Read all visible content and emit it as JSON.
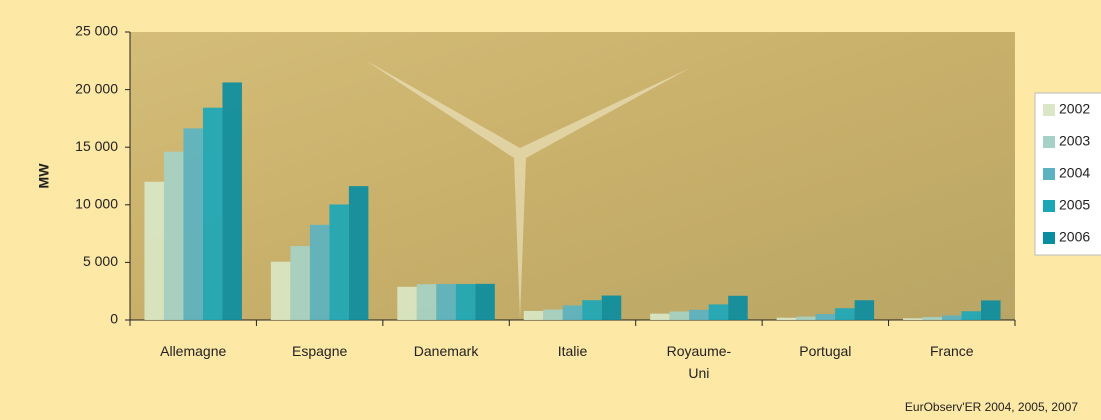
{
  "chart_data": {
    "type": "bar",
    "y_label": "MW",
    "source": "EurObserv'ER 2004, 2005, 2007",
    "categories": [
      "Allemagne",
      "Espagne",
      "Danemark",
      "Italie",
      "Royaume-Uni",
      "Portugal",
      "France"
    ],
    "series": [
      {
        "name": "2002",
        "color": "#d9e7c6",
        "values": [
          12000,
          5060,
          2880,
          785,
          552,
          195,
          148
        ]
      },
      {
        "name": "2003",
        "color": "#a6d1c6",
        "values": [
          14610,
          6420,
          3110,
          904,
          742,
          296,
          257
        ]
      },
      {
        "name": "2004",
        "color": "#5bb3c2",
        "values": [
          16630,
          8260,
          3120,
          1265,
          888,
          522,
          386
        ]
      },
      {
        "name": "2005",
        "color": "#1ca7b8",
        "values": [
          18430,
          10030,
          3120,
          1717,
          1353,
          1022,
          757
        ]
      },
      {
        "name": "2006",
        "color": "#0a8d9f",
        "values": [
          20620,
          11620,
          3140,
          2123,
          2100,
          1716,
          1700
        ]
      }
    ],
    "ylim": [
      0,
      25000
    ],
    "yticks": [
      0,
      {
        "value": 5000,
        "label": "5 000"
      },
      {
        "value": 10000,
        "label": "10 000"
      },
      {
        "value": 15000,
        "label": "15 000"
      },
      {
        "value": 20000,
        "label": "20 000"
      },
      {
        "value": 25000,
        "label": "25 000"
      }
    ],
    "legend": "right"
  }
}
